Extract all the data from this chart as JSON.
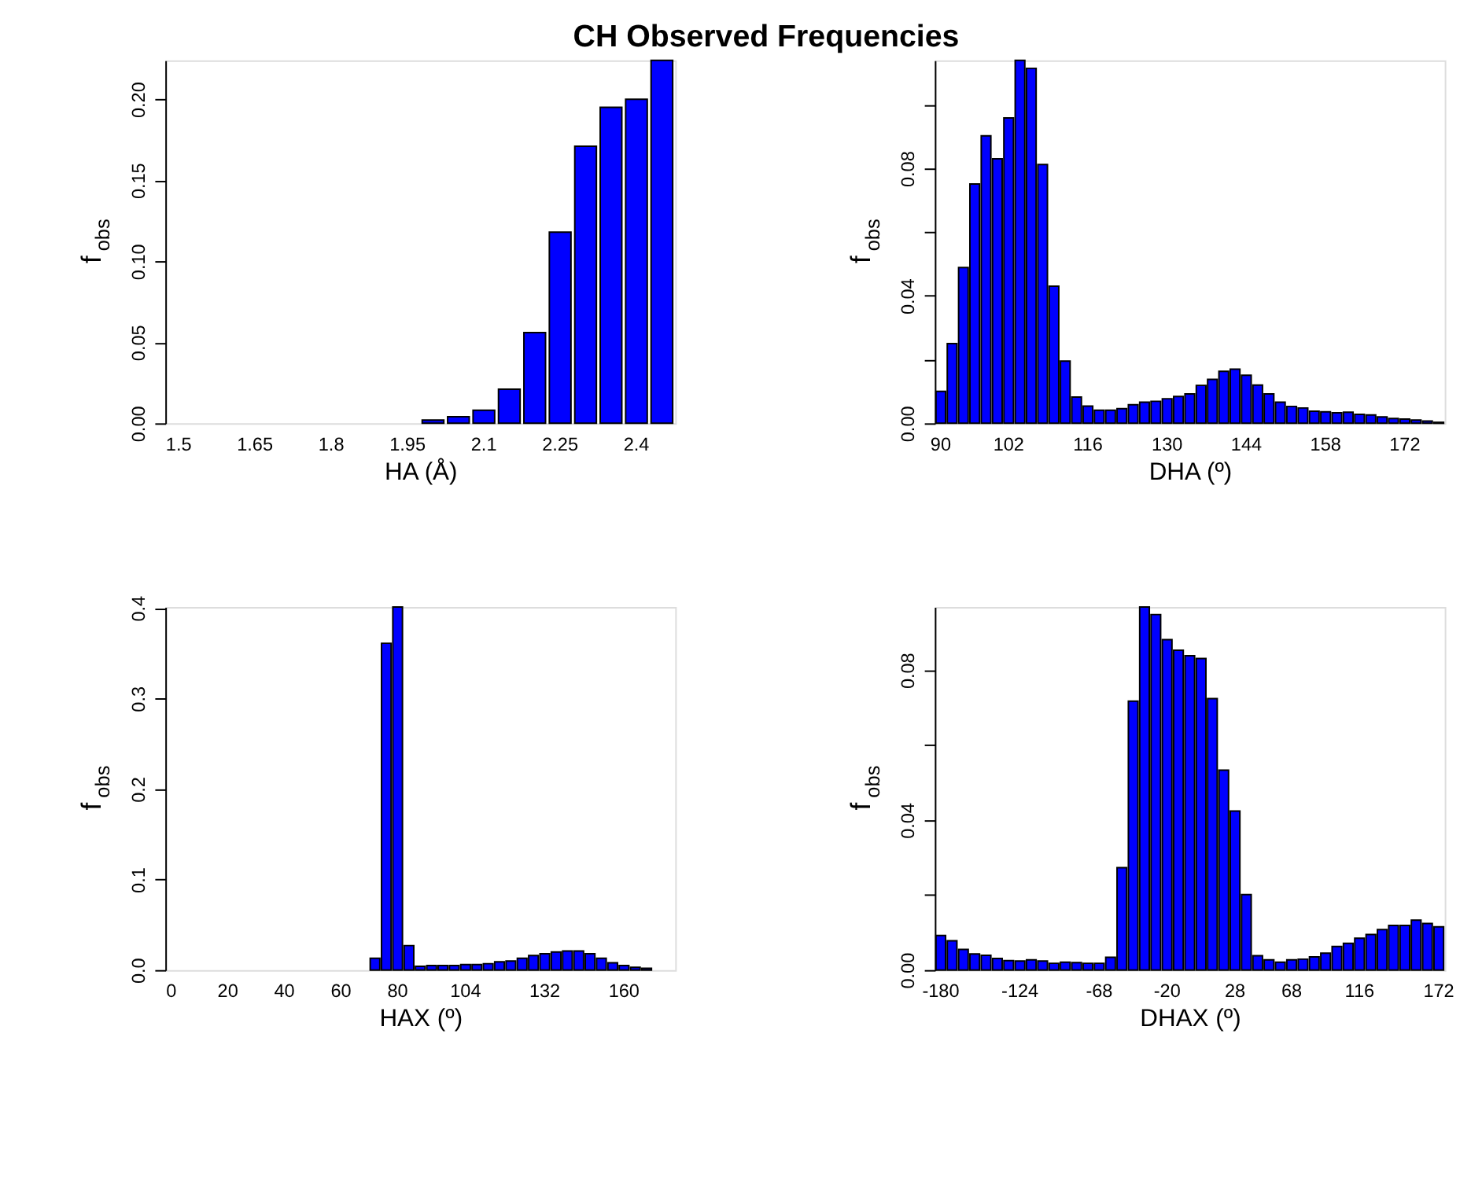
{
  "chart_data": [
    {
      "type": "bar",
      "title": "CH Observed Frequencies",
      "xlabel": "HA (Å)",
      "ylabel": "f$_{obs}$",
      "color": "#0000ff",
      "grid": false,
      "categories": [
        "1.5",
        null,
        null,
        "1.65",
        null,
        null,
        "1.8",
        null,
        null,
        "1.95",
        null,
        null,
        "2.1",
        null,
        null,
        "2.25",
        null,
        null,
        "2.4",
        null
      ],
      "values": [
        0,
        0,
        0,
        0,
        0,
        0,
        0,
        0,
        0,
        0,
        0.002,
        0.004,
        0.008,
        0.021,
        0.056,
        0.118,
        0.171,
        0.195,
        0.2,
        0.224
      ],
      "ylim": [
        0,
        0.224
      ],
      "yticks": [
        {
          "value": 0,
          "label": "0.00"
        },
        {
          "value": 0.05,
          "label": "0.05"
        },
        {
          "value": 0.1,
          "label": "0.10"
        },
        {
          "value": 0.15,
          "label": "0.15"
        },
        {
          "value": 0.2,
          "label": "0.20"
        }
      ]
    },
    {
      "type": "bar",
      "xlabel": "DHA (º)",
      "ylabel": "f$_{obs}$",
      "color": "#0000ff",
      "grid": false,
      "categories": [
        "90",
        null,
        null,
        null,
        null,
        null,
        "102",
        null,
        null,
        null,
        null,
        null,
        null,
        "116",
        null,
        null,
        null,
        null,
        null,
        null,
        "130",
        null,
        null,
        null,
        null,
        null,
        null,
        "144",
        null,
        null,
        null,
        null,
        null,
        null,
        "158",
        null,
        null,
        null,
        null,
        null,
        null,
        "172",
        null,
        null,
        null
      ],
      "values": [
        0.01,
        0.025,
        0.0489,
        0.0751,
        0.0902,
        0.083,
        0.0958,
        0.1139,
        0.1114,
        0.0812,
        0.043,
        0.0195,
        0.0082,
        0.0054,
        0.0041,
        0.0041,
        0.0046,
        0.0058,
        0.0066,
        0.0069,
        0.0077,
        0.0084,
        0.0092,
        0.0119,
        0.0138,
        0.0163,
        0.017,
        0.0151,
        0.012,
        0.0092,
        0.0066,
        0.0053,
        0.0048,
        0.0038,
        0.0036,
        0.0033,
        0.0035,
        0.0028,
        0.0026,
        0.002,
        0.0015,
        0.0013,
        0.001,
        0.0007,
        0.0003
      ],
      "ylim": [
        0,
        0.1139
      ],
      "yticks": [
        {
          "value": 0,
          "label": "0.00"
        },
        {
          "value": 0.02,
          "label": null
        },
        {
          "value": 0.04,
          "label": "0.04"
        },
        {
          "value": 0.06,
          "label": null
        },
        {
          "value": 0.08,
          "label": "0.08"
        },
        {
          "value": 0.1,
          "label": null
        }
      ]
    },
    {
      "type": "bar",
      "xlabel": "HAX (º)",
      "ylabel": "f$_{obs}$",
      "color": "#0000ff",
      "grid": false,
      "categories": [
        "0",
        null,
        null,
        null,
        null,
        "20",
        null,
        null,
        null,
        null,
        "40",
        null,
        null,
        null,
        null,
        "60",
        null,
        null,
        null,
        null,
        "80",
        null,
        null,
        null,
        null,
        null,
        "104",
        null,
        null,
        null,
        null,
        null,
        null,
        "132",
        null,
        null,
        null,
        null,
        null,
        null,
        "160",
        null,
        null,
        null,
        null
      ],
      "values": [
        0,
        0,
        0,
        0,
        0,
        0,
        0,
        0,
        0,
        0,
        0,
        0,
        0,
        0,
        0,
        0,
        0,
        0,
        0.013,
        0.361,
        0.401,
        0.027,
        0.004,
        0.005,
        0.005,
        0.005,
        0.006,
        0.006,
        0.007,
        0.009,
        0.01,
        0.013,
        0.016,
        0.018,
        0.02,
        0.021,
        0.021,
        0.018,
        0.013,
        0.008,
        0.005,
        0.003,
        0.002,
        0,
        0
      ],
      "ylim": [
        0,
        0.401
      ],
      "yticks": [
        {
          "value": 0,
          "label": "0.0"
        },
        {
          "value": 0.1,
          "label": "0.1"
        },
        {
          "value": 0.2,
          "label": "0.2"
        },
        {
          "value": 0.3,
          "label": "0.3"
        },
        {
          "value": 0.4,
          "label": "0.4"
        }
      ]
    },
    {
      "type": "bar",
      "xlabel": "DHAX (º)",
      "ylabel": "f$_{obs}$",
      "color": "#0000ff",
      "grid": false,
      "categories": [
        "-180",
        null,
        null,
        null,
        null,
        null,
        null,
        "-124",
        null,
        null,
        null,
        null,
        null,
        null,
        "-68",
        null,
        null,
        null,
        null,
        null,
        "-20",
        null,
        null,
        null,
        null,
        null,
        "28",
        null,
        null,
        null,
        null,
        "68",
        null,
        null,
        null,
        null,
        null,
        "116",
        null,
        null,
        null,
        null,
        null,
        null,
        "172"
      ],
      "values": [
        0.0092,
        0.0078,
        0.0055,
        0.0043,
        0.0039,
        0.0031,
        0.0025,
        0.0024,
        0.0027,
        0.0024,
        0.0018,
        0.0021,
        0.002,
        0.0018,
        0.0018,
        0.0034,
        0.0273,
        0.0717,
        0.0968,
        0.0948,
        0.0881,
        0.0853,
        0.0838,
        0.0831,
        0.0724,
        0.0533,
        0.0424,
        0.0201,
        0.0038,
        0.0027,
        0.0021,
        0.0027,
        0.0029,
        0.0035,
        0.0045,
        0.0063,
        0.0071,
        0.0085,
        0.0095,
        0.0108,
        0.0119,
        0.0119,
        0.0133,
        0.0124,
        0.0115
      ],
      "ylim": [
        0,
        0.0968
      ],
      "yticks": [
        {
          "value": 0,
          "label": "0.00"
        },
        {
          "value": 0.02,
          "label": null
        },
        {
          "value": 0.04,
          "label": "0.04"
        },
        {
          "value": 0.06,
          "label": null
        },
        {
          "value": 0.08,
          "label": "0.08"
        }
      ]
    }
  ]
}
